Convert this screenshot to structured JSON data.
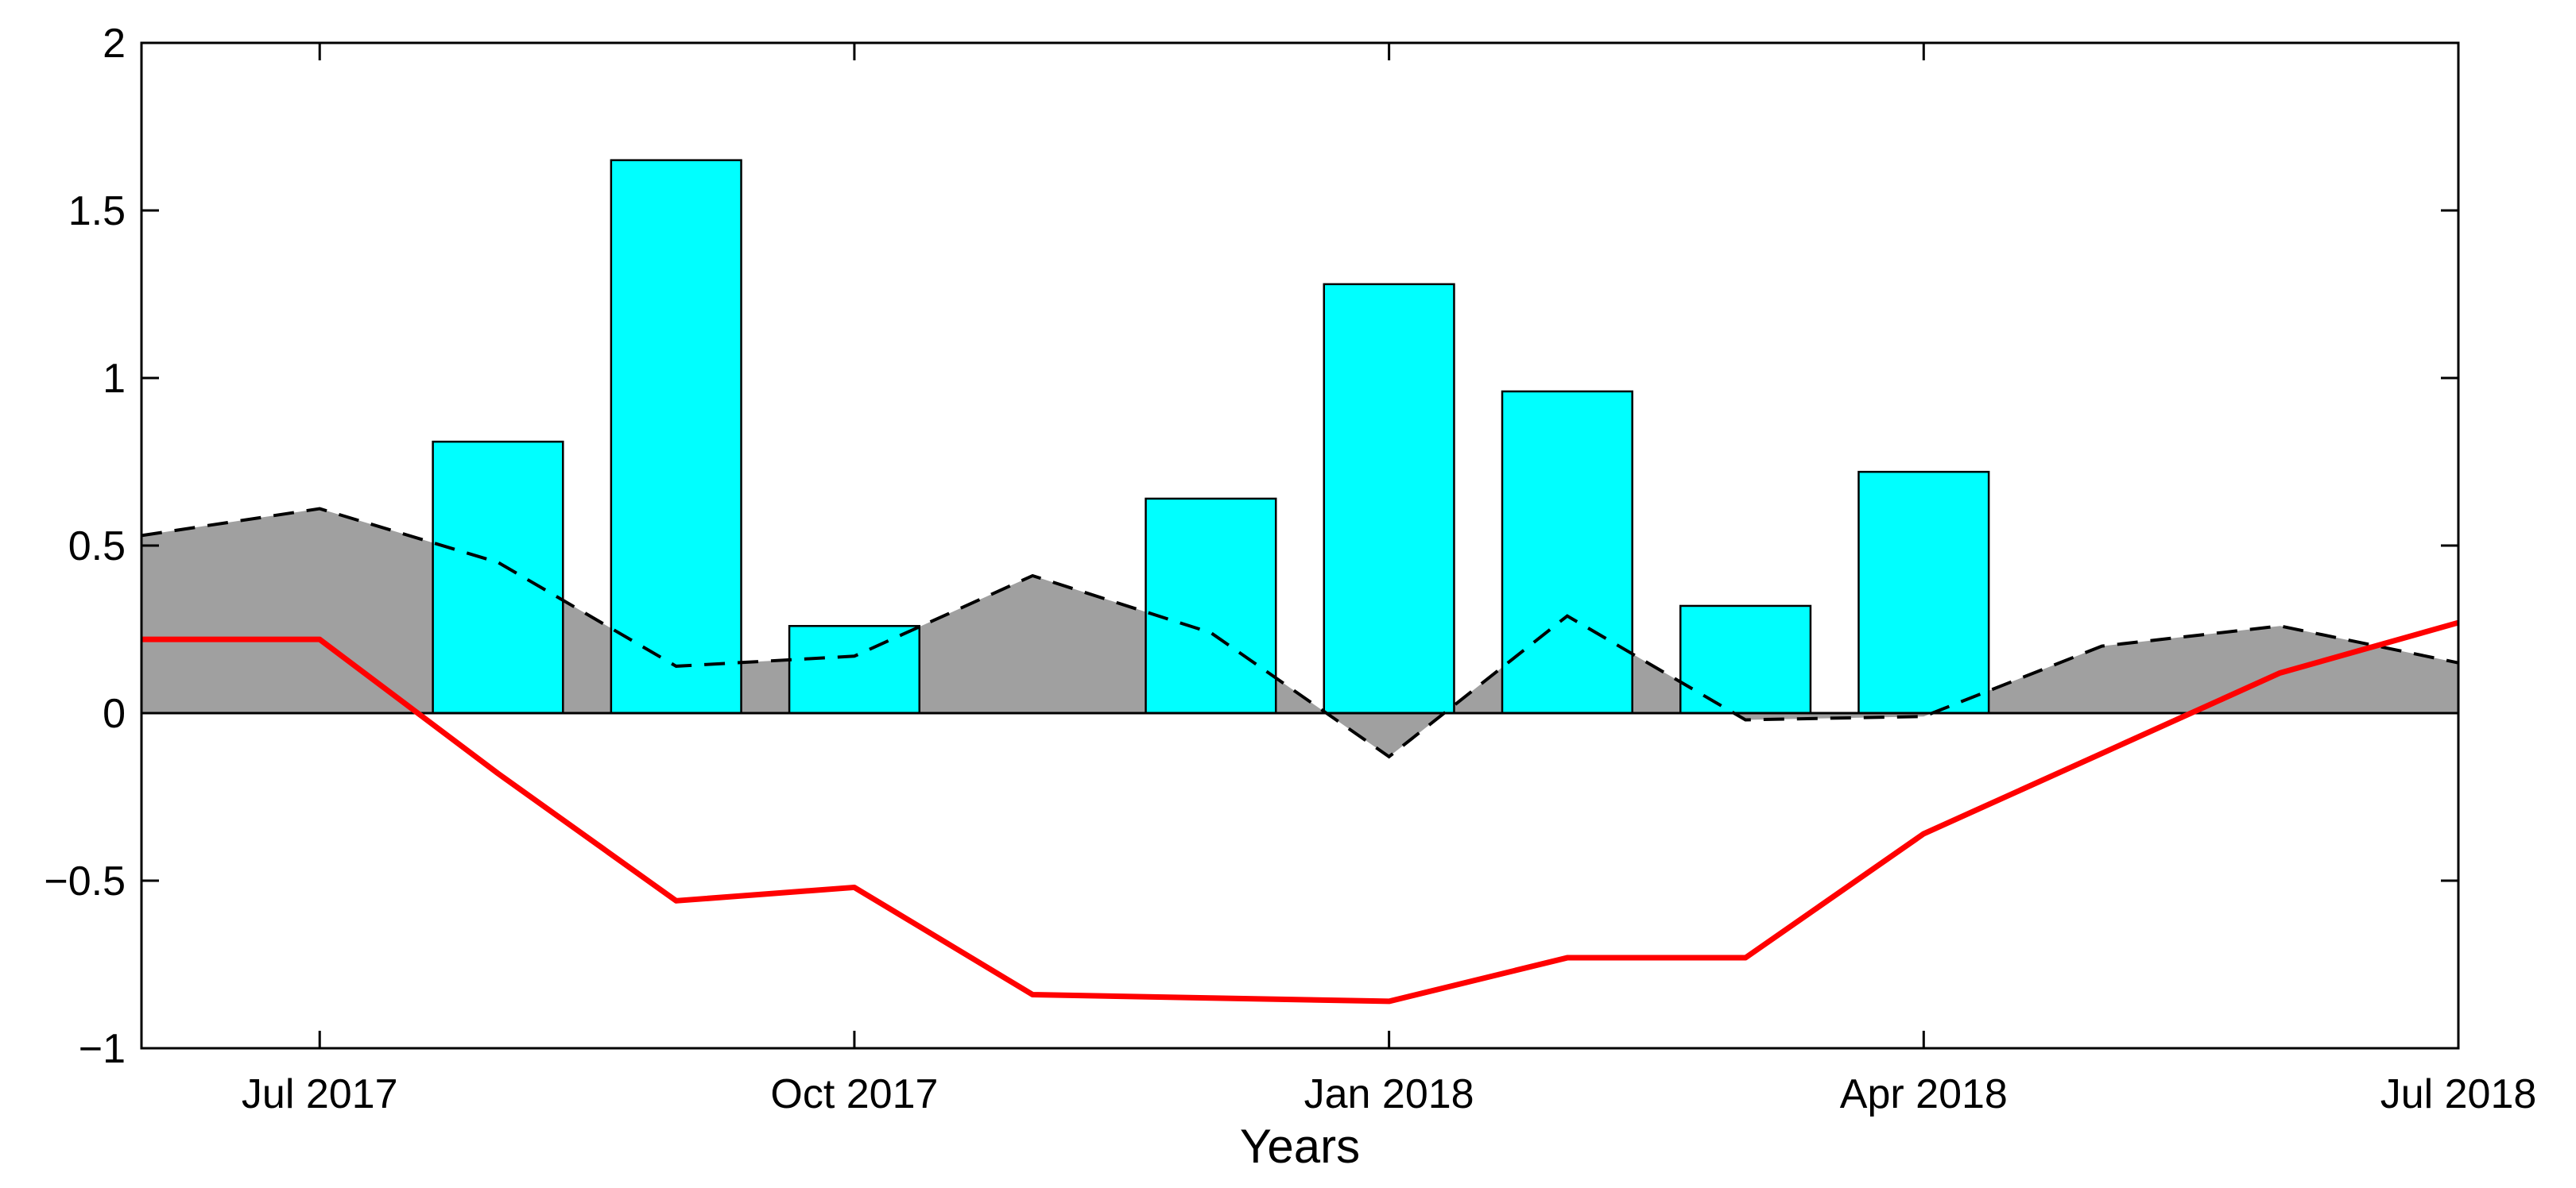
{
  "chart_data": {
    "type": "bar",
    "title": "",
    "xlabel": "Years",
    "ylabel": "",
    "xlim": [
      -1,
      12
    ],
    "ylim": [
      -1,
      2
    ],
    "x_ticks": [
      {
        "x": 0,
        "label": "Jul 2017"
      },
      {
        "x": 3,
        "label": "Oct 2017"
      },
      {
        "x": 6,
        "label": "Jan 2018"
      },
      {
        "x": 9,
        "label": "Apr 2018"
      },
      {
        "x": 12,
        "label": "Jul 2018"
      }
    ],
    "y_ticks": [
      -1,
      -0.5,
      0,
      0.5,
      1,
      1.5,
      2
    ],
    "y_tick_labels": [
      "−1",
      "−0.5",
      "0",
      "0.5",
      "1",
      "1.5",
      "2"
    ],
    "area_series": {
      "name": "shaded area",
      "color": "#a0a0a0",
      "x": [
        -1,
        0,
        1,
        2,
        3,
        4,
        5,
        6,
        7,
        8,
        9,
        10,
        11,
        12
      ],
      "values": [
        0.53,
        0.61,
        0.45,
        0.14,
        0.17,
        0.41,
        0.24,
        -0.13,
        0.29,
        -0.02,
        -0.01,
        0.2,
        0.26,
        0.15
      ]
    },
    "bar_series": {
      "name": "bars",
      "color": "#00ffff",
      "x": [
        1,
        2,
        3,
        5,
        6,
        7,
        8,
        9
      ],
      "values": [
        0.81,
        1.65,
        0.26,
        0.64,
        1.28,
        0.96,
        0.32,
        0.72
      ]
    },
    "dashed_series": {
      "name": "dashed line",
      "color": "#000000",
      "x": [
        -1,
        0,
        1,
        2,
        3,
        4,
        5,
        6,
        7,
        8,
        9,
        10,
        11,
        12
      ],
      "values": [
        0.53,
        0.61,
        0.45,
        0.14,
        0.17,
        0.41,
        0.24,
        -0.13,
        0.29,
        -0.02,
        -0.01,
        0.2,
        0.26,
        0.15
      ]
    },
    "red_series": {
      "name": "red line",
      "color": "#ff0000",
      "x": [
        -1,
        0,
        1,
        2,
        3,
        4,
        5,
        6,
        7,
        8,
        9,
        10,
        11,
        12
      ],
      "values": [
        0.22,
        0.22,
        -0.18,
        -0.56,
        -0.52,
        -0.84,
        -0.85,
        -0.86,
        -0.73,
        -0.73,
        -0.36,
        -0.12,
        0.12,
        0.27
      ]
    }
  }
}
